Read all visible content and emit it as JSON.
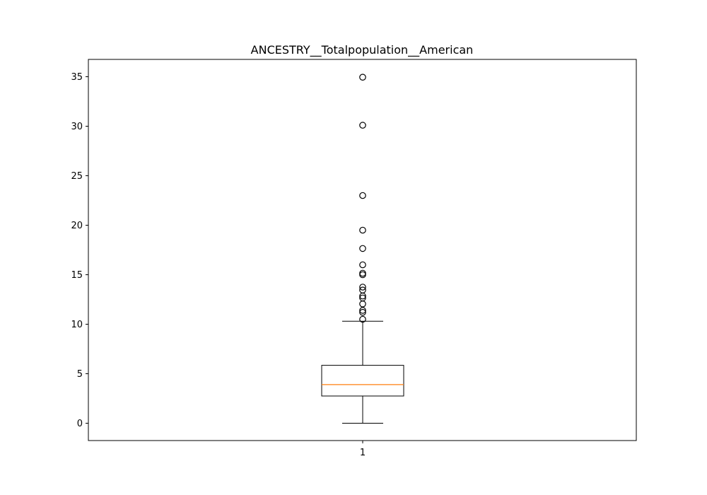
{
  "chart_data": {
    "type": "box",
    "title": "ANCESTRY__Totalpopulation__American",
    "xlabel": "",
    "ylabel": "",
    "categories": [
      "1"
    ],
    "ylim": [
      -1.75,
      36.75
    ],
    "yticks": [
      0,
      5,
      10,
      15,
      20,
      25,
      30,
      35
    ],
    "grid": false,
    "box": {
      "whisker_low": 0.0,
      "q1": 2.75,
      "median": 3.9,
      "q3": 5.85,
      "whisker_high": 10.3
    },
    "outliers": [
      10.5,
      11.2,
      11.4,
      12.05,
      12.65,
      12.85,
      13.45,
      13.75,
      15.0,
      15.15,
      16.0,
      17.65,
      19.5,
      23.0,
      30.1,
      34.95
    ],
    "colors": {
      "box": "#000000",
      "median": "#ff7f0e",
      "flier_edge": "#000000",
      "axes": "#000000"
    }
  }
}
